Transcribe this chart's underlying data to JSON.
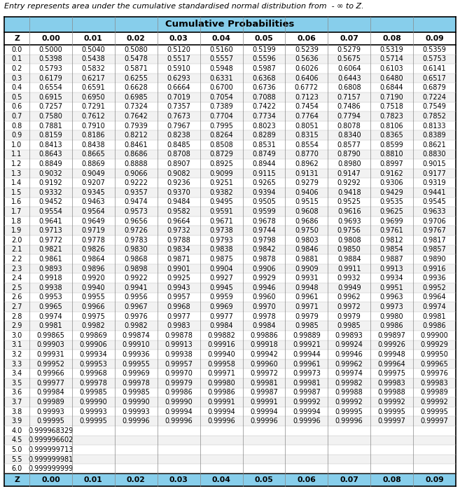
{
  "title_text": "Entry represents area under the cumulative standardised normal distribution from  - ∞ to Z.",
  "header_title": "Cumulative Probabilities",
  "col_headers": [
    "Z",
    "0.00",
    "0.01",
    "0.02",
    "0.03",
    "0.04",
    "0.05",
    "0.06",
    "0.07",
    "0.08",
    "0.09"
  ],
  "rows": [
    [
      "0.0",
      "0.5000",
      "0.5040",
      "0.5080",
      "0.5120",
      "0.5160",
      "0.5199",
      "0.5239",
      "0.5279",
      "0.5319",
      "0.5359"
    ],
    [
      "0.1",
      "0.5398",
      "0.5438",
      "0.5478",
      "0.5517",
      "0.5557",
      "0.5596",
      "0.5636",
      "0.5675",
      "0.5714",
      "0.5753"
    ],
    [
      "0.2",
      "0.5793",
      "0.5832",
      "0.5871",
      "0.5910",
      "0.5948",
      "0.5987",
      "0.6026",
      "0.6064",
      "0.6103",
      "0.6141"
    ],
    [
      "0.3",
      "0.6179",
      "0.6217",
      "0.6255",
      "0.6293",
      "0.6331",
      "0.6368",
      "0.6406",
      "0.6443",
      "0.6480",
      "0.6517"
    ],
    [
      "0.4",
      "0.6554",
      "0.6591",
      "0.6628",
      "0.6664",
      "0.6700",
      "0.6736",
      "0.6772",
      "0.6808",
      "0.6844",
      "0.6879"
    ],
    [
      "0.5",
      "0.6915",
      "0.6950",
      "0.6985",
      "0.7019",
      "0.7054",
      "0.7088",
      "0.7123",
      "0.7157",
      "0.7190",
      "0.7224"
    ],
    [
      "0.6",
      "0.7257",
      "0.7291",
      "0.7324",
      "0.7357",
      "0.7389",
      "0.7422",
      "0.7454",
      "0.7486",
      "0.7518",
      "0.7549"
    ],
    [
      "0.7",
      "0.7580",
      "0.7612",
      "0.7642",
      "0.7673",
      "0.7704",
      "0.7734",
      "0.7764",
      "0.7794",
      "0.7823",
      "0.7852"
    ],
    [
      "0.8",
      "0.7881",
      "0.7910",
      "0.7939",
      "0.7967",
      "0.7995",
      "0.8023",
      "0.8051",
      "0.8078",
      "0.8106",
      "0.8133"
    ],
    [
      "0.9",
      "0.8159",
      "0.8186",
      "0.8212",
      "0.8238",
      "0.8264",
      "0.8289",
      "0.8315",
      "0.8340",
      "0.8365",
      "0.8389"
    ],
    [
      "1.0",
      "0.8413",
      "0.8438",
      "0.8461",
      "0.8485",
      "0.8508",
      "0.8531",
      "0.8554",
      "0.8577",
      "0.8599",
      "0.8621"
    ],
    [
      "1.1",
      "0.8643",
      "0.8665",
      "0.8686",
      "0.8708",
      "0.8729",
      "0.8749",
      "0.8770",
      "0.8790",
      "0.8810",
      "0.8830"
    ],
    [
      "1.2",
      "0.8849",
      "0.8869",
      "0.8888",
      "0.8907",
      "0.8925",
      "0.8944",
      "0.8962",
      "0.8980",
      "0.8997",
      "0.9015"
    ],
    [
      "1.3",
      "0.9032",
      "0.9049",
      "0.9066",
      "0.9082",
      "0.9099",
      "0.9115",
      "0.9131",
      "0.9147",
      "0.9162",
      "0.9177"
    ],
    [
      "1.4",
      "0.9192",
      "0.9207",
      "0.9222",
      "0.9236",
      "0.9251",
      "0.9265",
      "0.9279",
      "0.9292",
      "0.9306",
      "0.9319"
    ],
    [
      "1.5",
      "0.9332",
      "0.9345",
      "0.9357",
      "0.9370",
      "0.9382",
      "0.9394",
      "0.9406",
      "0.9418",
      "0.9429",
      "0.9441"
    ],
    [
      "1.6",
      "0.9452",
      "0.9463",
      "0.9474",
      "0.9484",
      "0.9495",
      "0.9505",
      "0.9515",
      "0.9525",
      "0.9535",
      "0.9545"
    ],
    [
      "1.7",
      "0.9554",
      "0.9564",
      "0.9573",
      "0.9582",
      "0.9591",
      "0.9599",
      "0.9608",
      "0.9616",
      "0.9625",
      "0.9633"
    ],
    [
      "1.8",
      "0.9641",
      "0.9649",
      "0.9656",
      "0.9664",
      "0.9671",
      "0.9678",
      "0.9686",
      "0.9693",
      "0.9699",
      "0.9706"
    ],
    [
      "1.9",
      "0.9713",
      "0.9719",
      "0.9726",
      "0.9732",
      "0.9738",
      "0.9744",
      "0.9750",
      "0.9756",
      "0.9761",
      "0.9767"
    ],
    [
      "2.0",
      "0.9772",
      "0.9778",
      "0.9783",
      "0.9788",
      "0.9793",
      "0.9798",
      "0.9803",
      "0.9808",
      "0.9812",
      "0.9817"
    ],
    [
      "2.1",
      "0.9821",
      "0.9826",
      "0.9830",
      "0.9834",
      "0.9838",
      "0.9842",
      "0.9846",
      "0.9850",
      "0.9854",
      "0.9857"
    ],
    [
      "2.2",
      "0.9861",
      "0.9864",
      "0.9868",
      "0.9871",
      "0.9875",
      "0.9878",
      "0.9881",
      "0.9884",
      "0.9887",
      "0.9890"
    ],
    [
      "2.3",
      "0.9893",
      "0.9896",
      "0.9898",
      "0.9901",
      "0.9904",
      "0.9906",
      "0.9909",
      "0.9911",
      "0.9913",
      "0.9916"
    ],
    [
      "2.4",
      "0.9918",
      "0.9920",
      "0.9922",
      "0.9925",
      "0.9927",
      "0.9929",
      "0.9931",
      "0.9932",
      "0.9934",
      "0.9936"
    ],
    [
      "2.5",
      "0.9938",
      "0.9940",
      "0.9941",
      "0.9943",
      "0.9945",
      "0.9946",
      "0.9948",
      "0.9949",
      "0.9951",
      "0.9952"
    ],
    [
      "2.6",
      "0.9953",
      "0.9955",
      "0.9956",
      "0.9957",
      "0.9959",
      "0.9960",
      "0.9961",
      "0.9962",
      "0.9963",
      "0.9964"
    ],
    [
      "2.7",
      "0.9965",
      "0.9966",
      "0.9967",
      "0.9968",
      "0.9969",
      "0.9970",
      "0.9971",
      "0.9972",
      "0.9973",
      "0.9974"
    ],
    [
      "2.8",
      "0.9974",
      "0.9975",
      "0.9976",
      "0.9977",
      "0.9977",
      "0.9978",
      "0.9979",
      "0.9979",
      "0.9980",
      "0.9981"
    ],
    [
      "2.9",
      "0.9981",
      "0.9982",
      "0.9982",
      "0.9983",
      "0.9984",
      "0.9984",
      "0.9985",
      "0.9985",
      "0.9986",
      "0.9986"
    ],
    [
      "3.0",
      "0.99865",
      "0.99869",
      "0.99874",
      "0.99878",
      "0.99882",
      "0.99886",
      "0.99889",
      "0.99893",
      "0.99897",
      "0.99900"
    ],
    [
      "3.1",
      "0.99903",
      "0.99906",
      "0.99910",
      "0.99913",
      "0.99916",
      "0.99918",
      "0.99921",
      "0.99924",
      "0.99926",
      "0.99929"
    ],
    [
      "3.2",
      "0.99931",
      "0.99934",
      "0.99936",
      "0.99938",
      "0.99940",
      "0.99942",
      "0.99944",
      "0.99946",
      "0.99948",
      "0.99950"
    ],
    [
      "3.3",
      "0.99952",
      "0.99953",
      "0.99955",
      "0.99957",
      "0.99958",
      "0.99960",
      "0.99961",
      "0.99962",
      "0.99964",
      "0.99965"
    ],
    [
      "3.4",
      "0.99966",
      "0.99968",
      "0.99969",
      "0.99970",
      "0.99971",
      "0.99972",
      "0.99973",
      "0.99974",
      "0.99975",
      "0.99976"
    ],
    [
      "3.5",
      "0.99977",
      "0.99978",
      "0.99978",
      "0.99979",
      "0.99980",
      "0.99981",
      "0.99981",
      "0.99982",
      "0.99983",
      "0.99983"
    ],
    [
      "3.6",
      "0.99984",
      "0.99985",
      "0.99985",
      "0.99986",
      "0.99986",
      "0.99987",
      "0.99987",
      "0.99988",
      "0.99988",
      "0.99989"
    ],
    [
      "3.7",
      "0.99989",
      "0.99990",
      "0.99990",
      "0.99990",
      "0.99991",
      "0.99991",
      "0.99992",
      "0.99992",
      "0.99992",
      "0.99992"
    ],
    [
      "3.8",
      "0.99993",
      "0.99993",
      "0.99993",
      "0.99994",
      "0.99994",
      "0.99994",
      "0.99994",
      "0.99995",
      "0.99995",
      "0.99995"
    ],
    [
      "3.9",
      "0.99995",
      "0.99995",
      "0.99996",
      "0.99996",
      "0.99996",
      "0.99996",
      "0.99996",
      "0.99996",
      "0.99997",
      "0.99997"
    ],
    [
      "4.0",
      "0.999968329",
      "",
      "",
      "",
      "",
      "",
      "",
      "",
      "",
      ""
    ],
    [
      "4.5",
      "0.999996602",
      "",
      "",
      "",
      "",
      "",
      "",
      "",
      "",
      ""
    ],
    [
      "5.0",
      "0.999999713",
      "",
      "",
      "",
      "",
      "",
      "",
      "",
      "",
      ""
    ],
    [
      "5.5",
      "0.999999981",
      "",
      "",
      "",
      "",
      "",
      "",
      "",
      "",
      ""
    ],
    [
      "6.0",
      "0.999999999",
      "",
      "",
      "",
      "",
      "",
      "",
      "",
      "",
      ""
    ]
  ],
  "header_bg": "#87CEEB",
  "col_header_bg": "#ffffff",
  "alt_row_bg": "#f2f2f2",
  "white_row_bg": "#ffffff",
  "border_color": "#000000",
  "header_text_color": "#000000",
  "data_text_color": "#000000",
  "title_fontsize": 8.0,
  "header_fontsize": 9.5,
  "col_header_fontsize": 7.8,
  "data_fontsize": 7.0,
  "fig_width": 6.57,
  "fig_height": 6.98
}
